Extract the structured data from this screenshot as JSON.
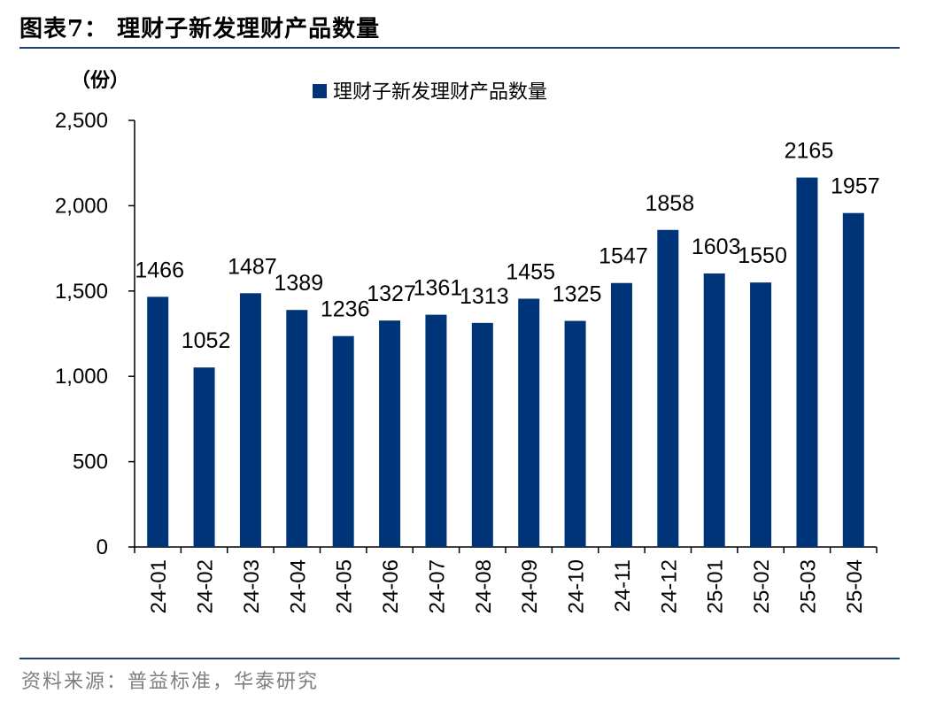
{
  "header": {
    "title": "图表7：  理财子新发理财产品数量"
  },
  "footer": {
    "source": "资料来源：普益标准，华泰研究"
  },
  "chart_data": {
    "type": "bar",
    "unit_label": "（份）",
    "categories": [
      "24-01",
      "24-02",
      "24-03",
      "24-04",
      "24-05",
      "24-06",
      "24-07",
      "24-08",
      "24-09",
      "24-10",
      "24-11",
      "24-12",
      "25-01",
      "25-02",
      "25-03",
      "25-04"
    ],
    "series": [
      {
        "name": "理财子新发理财产品数量",
        "values": [
          1466,
          1052,
          1487,
          1389,
          1236,
          1327,
          1361,
          1313,
          1455,
          1325,
          1547,
          1858,
          1603,
          1550,
          2165,
          1957
        ]
      }
    ],
    "ylim": [
      0,
      2500
    ],
    "yticks": [
      0,
      500,
      1000,
      1500,
      2000,
      2500
    ],
    "ytick_labels": [
      "0",
      "500",
      "1,000",
      "1,500",
      "2,000",
      "2,500"
    ],
    "bar_color": "#003478",
    "grid": false,
    "legend_position": "top-center"
  }
}
